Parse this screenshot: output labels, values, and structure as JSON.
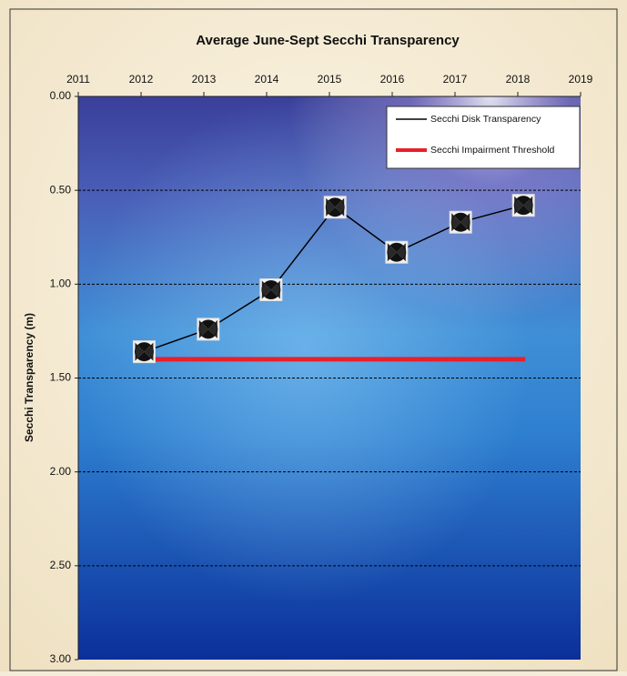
{
  "chart_data": {
    "type": "line",
    "title": "Average June-Sept Secchi Transparency",
    "y_label": "Secchi Transparency (m)",
    "series": [
      {
        "name": "Secchi Disk Transparency",
        "color": "#000000",
        "marker": "secchi-disk",
        "x": [
          2012.05,
          2013.07,
          2014.07,
          2015.09,
          2016.07,
          2017.09,
          2018.09
        ],
        "values": [
          1.36,
          1.24,
          1.03,
          0.59,
          0.83,
          0.67,
          0.58
        ]
      },
      {
        "name": "Secchi Impairment Threshold",
        "color": "#e8202a",
        "marker": "none",
        "x": [
          2012.05,
          2018.12
        ],
        "values": [
          1.4,
          1.4
        ]
      }
    ],
    "xlim": [
      2011,
      2019
    ],
    "xticks": [
      2011,
      2012,
      2013,
      2014,
      2015,
      2016,
      2017,
      2018,
      2019
    ],
    "x_axis_position": "top",
    "ylim": [
      0,
      3
    ],
    "y_inverted": true,
    "yticks": [
      {
        "value": 0,
        "label": "0.00"
      },
      {
        "value": 0.5,
        "label": "0.50"
      },
      {
        "value": 1,
        "label": "1.00"
      },
      {
        "value": 1.5,
        "label": "1.50"
      },
      {
        "value": 2,
        "label": "2.00"
      },
      {
        "value": 2.5,
        "label": "2.50"
      },
      {
        "value": 3,
        "label": "3.00"
      }
    ],
    "grid": true,
    "legend": "top-right"
  }
}
